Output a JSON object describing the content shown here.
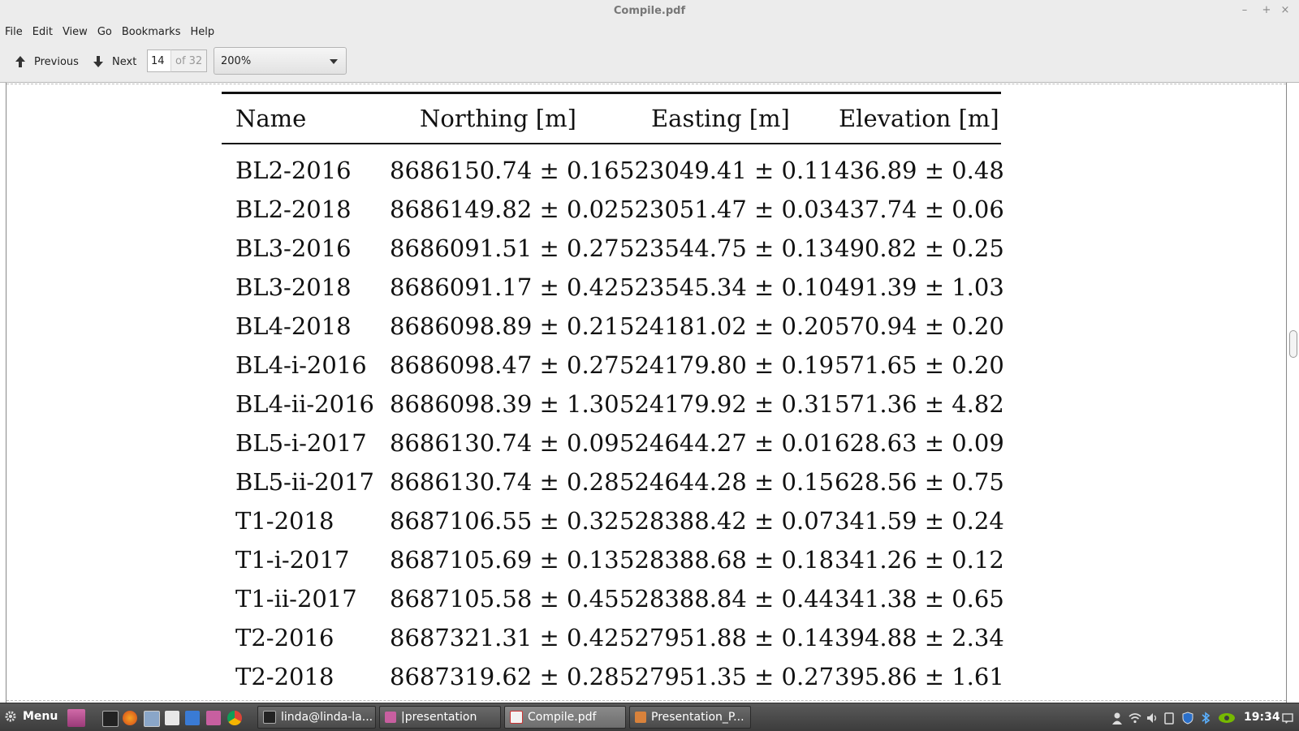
{
  "window": {
    "title": "Compile.pdf",
    "minimize": "–",
    "maximize": "+",
    "close": "×"
  },
  "menu": [
    "File",
    "Edit",
    "View",
    "Go",
    "Bookmarks",
    "Help"
  ],
  "toolbar": {
    "previous_label": "Previous",
    "next_label": "Next",
    "page_value": "14",
    "page_total": "of 32",
    "zoom_value": "200%"
  },
  "table": {
    "headers": [
      "Name",
      "Northing [m]",
      "Easting [m]",
      "Elevation [m]"
    ],
    "rows": [
      [
        "BL2-2016",
        "8686150.74 ± 0.16",
        "523049.41 ± 0.11",
        "436.89 ± 0.48"
      ],
      [
        "BL2-2018",
        "8686149.82 ± 0.02",
        "523051.47 ± 0.03",
        "437.74 ± 0.06"
      ],
      [
        "BL3-2016",
        "8686091.51 ± 0.27",
        "523544.75 ± 0.13",
        "490.82 ± 0.25"
      ],
      [
        "BL3-2018",
        "8686091.17 ± 0.42",
        "523545.34 ± 0.10",
        "491.39 ± 1.03"
      ],
      [
        "BL4-2018",
        "8686098.89 ± 0.21",
        "524181.02 ± 0.20",
        "570.94 ± 0.20"
      ],
      [
        "BL4-i-2016",
        "8686098.47 ± 0.27",
        "524179.80 ± 0.19",
        "571.65 ± 0.20"
      ],
      [
        "BL4-ii-2016",
        "8686098.39 ± 1.30",
        "524179.92 ± 0.31",
        "571.36 ± 4.82"
      ],
      [
        "BL5-i-2017",
        "8686130.74 ± 0.09",
        "524644.27 ± 0.01",
        "628.63 ± 0.09"
      ],
      [
        "BL5-ii-2017",
        "8686130.74 ± 0.28",
        "524644.28 ± 0.15",
        "628.56 ± 0.75"
      ],
      [
        "T1-2018",
        "8687106.55 ± 0.32",
        "528388.42 ± 0.07",
        "341.59 ± 0.24"
      ],
      [
        "T1-i-2017",
        "8687105.69 ± 0.13",
        "528388.68 ± 0.18",
        "341.26 ± 0.12"
      ],
      [
        "T1-ii-2017",
        "8687105.58 ± 0.45",
        "528388.84 ± 0.44",
        "341.38 ± 0.65"
      ],
      [
        "T2-2016",
        "8687321.31 ± 0.42",
        "527951.88 ± 0.14",
        "394.88 ± 2.34"
      ],
      [
        "T2-2018",
        "8687319.62 ± 0.28",
        "527951.35 ± 0.27",
        "395.86 ± 1.61"
      ]
    ]
  },
  "taskbar": {
    "menu_label": "Menu",
    "tasks": [
      "linda@linda-la...",
      "|presentation",
      "Compile.pdf",
      "Presentation_P..."
    ],
    "clock": "19:34"
  }
}
